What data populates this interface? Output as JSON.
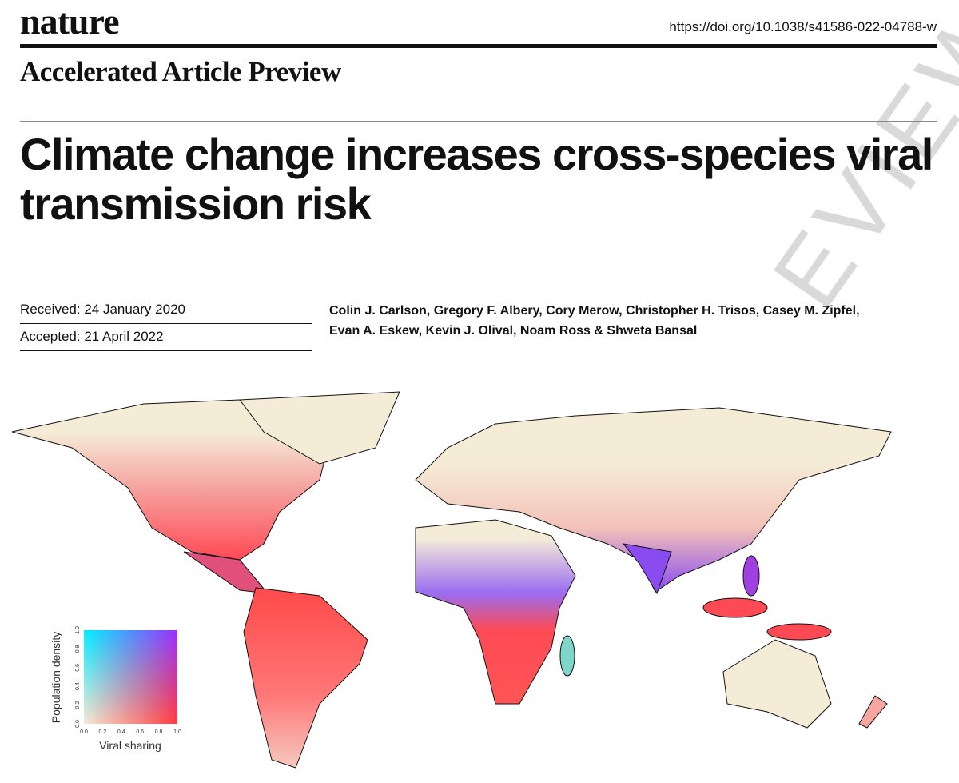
{
  "header": {
    "journal": "nature",
    "doi": "https://doi.org/10.1038/s41586-022-04788-w",
    "section": "Accelerated Article Preview"
  },
  "title": "Climate change increases cross-species viral transmission risk",
  "dates": {
    "received": "Received: 24 January 2020",
    "accepted": "Accepted: 21 April 2022"
  },
  "authors": [
    "Colin J. Carlson, Gregory F. Albery, Cory Merow, Christopher H. Trisos, Casey M. Zipfel,",
    "Evan A. Eskew, Kevin J. Olival, Noam Ross & Shweta Bansal"
  ],
  "watermark": "EVIEW",
  "figure": {
    "legend": {
      "x_label": "Viral sharing",
      "y_label": "Population density",
      "x_ticks": [
        "0.0",
        "0.2",
        "0.4",
        "0.6",
        "0.8",
        "1.0"
      ],
      "y_ticks": [
        "0.0",
        "0.2",
        "0.4",
        "0.6",
        "0.8",
        "1.0"
      ]
    }
  }
}
